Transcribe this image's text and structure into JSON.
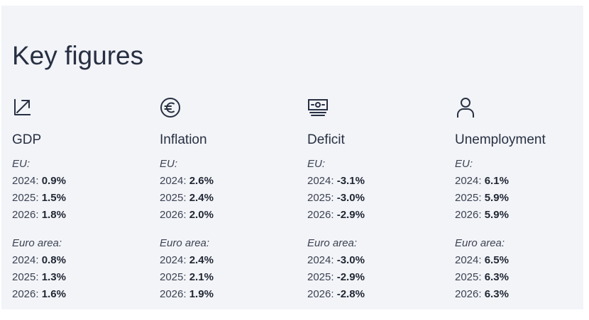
{
  "title": "Key figures",
  "colors": {
    "panel_background": "#f3f4f8",
    "text": "#273042",
    "icon_stroke": "#273042"
  },
  "metrics": [
    {
      "name": "GDP",
      "icon": "trend-up-arrow-icon",
      "eu": {
        "label": "EU:",
        "rows": [
          {
            "year": "2024",
            "value": "0.9%"
          },
          {
            "year": "2025",
            "value": "1.5%"
          },
          {
            "year": "2026",
            "value": "1.8%"
          }
        ]
      },
      "euro_area": {
        "label": "Euro area:",
        "rows": [
          {
            "year": "2024",
            "value": "0.8%"
          },
          {
            "year": "2025",
            "value": "1.3%"
          },
          {
            "year": "2026",
            "value": "1.6%"
          }
        ]
      }
    },
    {
      "name": "Inflation",
      "icon": "euro-coin-icon",
      "eu": {
        "label": "EU:",
        "rows": [
          {
            "year": "2024",
            "value": "2.6%"
          },
          {
            "year": "2025",
            "value": "2.4%"
          },
          {
            "year": "2026",
            "value": "2.0%"
          }
        ]
      },
      "euro_area": {
        "label": "Euro area:",
        "rows": [
          {
            "year": "2024",
            "value": "2.4%"
          },
          {
            "year": "2025",
            "value": "2.1%"
          },
          {
            "year": "2026",
            "value": "1.9%"
          }
        ]
      }
    },
    {
      "name": "Deficit",
      "icon": "banknote-icon",
      "eu": {
        "label": "EU:",
        "rows": [
          {
            "year": "2024",
            "value": "-3.1%"
          },
          {
            "year": "2025",
            "value": "-3.0%"
          },
          {
            "year": "2026",
            "value": "-2.9%"
          }
        ]
      },
      "euro_area": {
        "label": "Euro area:",
        "rows": [
          {
            "year": "2024",
            "value": "-3.0%"
          },
          {
            "year": "2025",
            "value": "-2.9%"
          },
          {
            "year": "2026",
            "value": "-2.8%"
          }
        ]
      }
    },
    {
      "name": "Unemployment",
      "icon": "person-icon",
      "eu": {
        "label": "EU:",
        "rows": [
          {
            "year": "2024",
            "value": "6.1%"
          },
          {
            "year": "2025",
            "value": "5.9%"
          },
          {
            "year": "2026",
            "value": "5.9%"
          }
        ]
      },
      "euro_area": {
        "label": "Euro area:",
        "rows": [
          {
            "year": "2024",
            "value": "6.5%"
          },
          {
            "year": "2025",
            "value": "6.3%"
          },
          {
            "year": "2026",
            "value": "6.3%"
          }
        ]
      }
    }
  ]
}
